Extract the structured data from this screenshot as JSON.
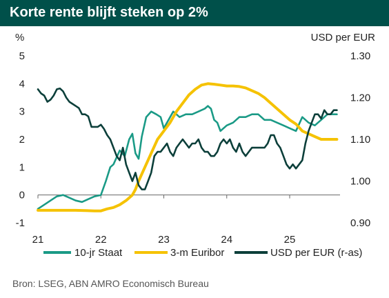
{
  "title": "Korte rente blijft steken op 2%",
  "source": "Bron: LSEG, ABN AMRO Economisch Bureau",
  "chart_data": {
    "type": "line",
    "y_left_unit": "%",
    "y_right_unit": "USD per EUR",
    "y_left_ticks": [
      "5",
      "4",
      "3",
      "2",
      "1",
      "0",
      "-1"
    ],
    "y_right_ticks": [
      "1.30",
      "1.20",
      "1.10",
      "1.00",
      "0.90"
    ],
    "ylim_left": [
      -1,
      5
    ],
    "ylim_right": [
      0.9,
      1.3
    ],
    "x_ticks": [
      "21",
      "22",
      "23",
      "24",
      "25"
    ],
    "x_tick_values": [
      2021,
      2022,
      2023,
      2024,
      2025
    ],
    "xlim": [
      2021.0,
      2025.8
    ],
    "grid": false,
    "series": [
      {
        "name": "10-jr Staat",
        "axis": "left",
        "color": "#1a9a86",
        "x": [
          2021.0,
          2021.1,
          2021.2,
          2021.3,
          2021.4,
          2021.5,
          2021.6,
          2021.7,
          2021.8,
          2021.9,
          2022.0,
          2022.08,
          2022.15,
          2022.2,
          2022.3,
          2022.38,
          2022.45,
          2022.5,
          2022.55,
          2022.6,
          2022.65,
          2022.72,
          2022.8,
          2022.88,
          2022.95,
          2023.0,
          2023.05,
          2023.15,
          2023.25,
          2023.35,
          2023.45,
          2023.55,
          2023.65,
          2023.7,
          2023.75,
          2023.8,
          2023.85,
          2023.9,
          2024.0,
          2024.1,
          2024.2,
          2024.3,
          2024.4,
          2024.5,
          2024.6,
          2024.7,
          2024.8,
          2024.9,
          2025.0,
          2025.1,
          2025.2,
          2025.3,
          2025.4,
          2025.5,
          2025.6,
          2025.7,
          2025.75
        ],
        "values": [
          -0.5,
          -0.35,
          -0.2,
          -0.05,
          0.0,
          -0.1,
          -0.2,
          -0.25,
          -0.15,
          -0.05,
          0.0,
          0.5,
          1.0,
          1.1,
          1.6,
          1.4,
          2.0,
          2.2,
          1.5,
          1.3,
          2.1,
          2.8,
          3.0,
          2.9,
          2.8,
          2.4,
          2.6,
          3.0,
          2.8,
          2.9,
          2.9,
          3.0,
          3.1,
          3.2,
          3.1,
          2.7,
          2.6,
          2.3,
          2.5,
          2.6,
          2.8,
          2.8,
          2.9,
          2.9,
          2.7,
          2.7,
          2.6,
          2.5,
          2.4,
          2.3,
          2.8,
          2.6,
          2.5,
          2.7,
          2.9,
          2.9,
          2.9
        ]
      },
      {
        "name": "3-m Euribor",
        "axis": "left",
        "color": "#f5c200",
        "x": [
          2021.0,
          2021.3,
          2021.6,
          2021.9,
          2022.0,
          2022.1,
          2022.2,
          2022.3,
          2022.4,
          2022.5,
          2022.55,
          2022.6,
          2022.7,
          2022.8,
          2022.9,
          2023.0,
          2023.1,
          2023.2,
          2023.3,
          2023.4,
          2023.5,
          2023.6,
          2023.7,
          2023.8,
          2023.9,
          2024.0,
          2024.1,
          2024.2,
          2024.3,
          2024.4,
          2024.5,
          2024.6,
          2024.7,
          2024.8,
          2024.9,
          2025.0,
          2025.1,
          2025.2,
          2025.3,
          2025.4,
          2025.5,
          2025.6,
          2025.7,
          2025.75
        ],
        "values": [
          -0.55,
          -0.55,
          -0.55,
          -0.57,
          -0.57,
          -0.5,
          -0.45,
          -0.35,
          -0.2,
          0.0,
          0.2,
          0.5,
          1.0,
          1.5,
          2.0,
          2.3,
          2.6,
          3.0,
          3.3,
          3.6,
          3.8,
          3.95,
          4.0,
          3.98,
          3.95,
          3.92,
          3.92,
          3.9,
          3.85,
          3.75,
          3.65,
          3.5,
          3.3,
          3.1,
          2.9,
          2.7,
          2.55,
          2.3,
          2.2,
          2.1,
          2.0,
          2.0,
          2.0,
          2.0
        ]
      },
      {
        "name": "USD per EUR (r-as)",
        "axis": "right",
        "color": "#0c3f3a",
        "x": [
          2021.0,
          2021.05,
          2021.1,
          2021.15,
          2021.2,
          2021.25,
          2021.3,
          2021.35,
          2021.4,
          2021.45,
          2021.5,
          2021.55,
          2021.6,
          2021.65,
          2021.7,
          2021.75,
          2021.8,
          2021.85,
          2021.9,
          2021.95,
          2022.0,
          2022.05,
          2022.1,
          2022.15,
          2022.2,
          2022.25,
          2022.3,
          2022.35,
          2022.4,
          2022.45,
          2022.5,
          2022.55,
          2022.6,
          2022.65,
          2022.7,
          2022.75,
          2022.8,
          2022.85,
          2022.9,
          2022.95,
          2023.0,
          2023.05,
          2023.1,
          2023.15,
          2023.2,
          2023.25,
          2023.3,
          2023.35,
          2023.4,
          2023.45,
          2023.5,
          2023.55,
          2023.6,
          2023.65,
          2023.7,
          2023.75,
          2023.8,
          2023.85,
          2023.9,
          2023.95,
          2024.0,
          2024.05,
          2024.1,
          2024.15,
          2024.2,
          2024.25,
          2024.3,
          2024.35,
          2024.4,
          2024.45,
          2024.5,
          2024.55,
          2024.6,
          2024.65,
          2024.7,
          2024.75,
          2024.8,
          2024.85,
          2024.9,
          2024.95,
          2025.0,
          2025.05,
          2025.1,
          2025.15,
          2025.2,
          2025.25,
          2025.3,
          2025.35,
          2025.4,
          2025.45,
          2025.5,
          2025.55,
          2025.6,
          2025.65,
          2025.7,
          2025.75
        ],
        "values": [
          1.22,
          1.21,
          1.205,
          1.19,
          1.195,
          1.205,
          1.22,
          1.222,
          1.215,
          1.2,
          1.19,
          1.185,
          1.18,
          1.175,
          1.16,
          1.16,
          1.155,
          1.13,
          1.13,
          1.13,
          1.135,
          1.125,
          1.11,
          1.1,
          1.08,
          1.06,
          1.05,
          1.08,
          1.04,
          1.02,
          1.0,
          1.02,
          0.99,
          0.98,
          0.98,
          1.0,
          1.02,
          1.06,
          1.07,
          1.07,
          1.08,
          1.09,
          1.07,
          1.06,
          1.08,
          1.09,
          1.1,
          1.09,
          1.08,
          1.09,
          1.09,
          1.1,
          1.08,
          1.07,
          1.07,
          1.06,
          1.06,
          1.07,
          1.09,
          1.1,
          1.09,
          1.1,
          1.08,
          1.07,
          1.09,
          1.07,
          1.06,
          1.07,
          1.08,
          1.08,
          1.08,
          1.08,
          1.08,
          1.09,
          1.11,
          1.11,
          1.09,
          1.08,
          1.06,
          1.04,
          1.03,
          1.04,
          1.03,
          1.04,
          1.05,
          1.09,
          1.12,
          1.14,
          1.16,
          1.16,
          1.15,
          1.17,
          1.16,
          1.16,
          1.17,
          1.17
        ]
      }
    ]
  }
}
